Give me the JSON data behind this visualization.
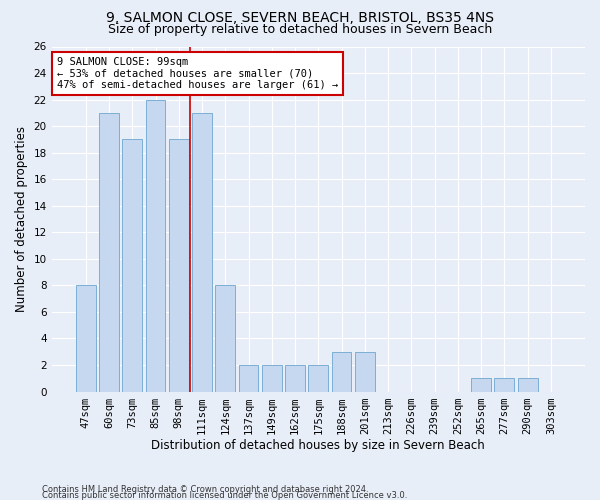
{
  "title_line1": "9, SALMON CLOSE, SEVERN BEACH, BRISTOL, BS35 4NS",
  "title_line2": "Size of property relative to detached houses in Severn Beach",
  "xlabel": "Distribution of detached houses by size in Severn Beach",
  "ylabel": "Number of detached properties",
  "footnote1": "Contains HM Land Registry data © Crown copyright and database right 2024.",
  "footnote2": "Contains public sector information licensed under the Open Government Licence v3.0.",
  "categories": [
    "47sqm",
    "60sqm",
    "73sqm",
    "85sqm",
    "98sqm",
    "111sqm",
    "124sqm",
    "137sqm",
    "149sqm",
    "162sqm",
    "175sqm",
    "188sqm",
    "201sqm",
    "213sqm",
    "226sqm",
    "239sqm",
    "252sqm",
    "265sqm",
    "277sqm",
    "290sqm",
    "303sqm"
  ],
  "values": [
    8,
    21,
    19,
    22,
    19,
    21,
    8,
    2,
    2,
    2,
    2,
    3,
    3,
    0,
    0,
    0,
    0,
    1,
    1,
    1,
    0
  ],
  "bar_color": "#c5d8f0",
  "bar_edge_color": "#7bafd4",
  "vline_x_index": 4.5,
  "vline_color": "#cc0000",
  "annotation_text": "9 SALMON CLOSE: 99sqm\n← 53% of detached houses are smaller (70)\n47% of semi-detached houses are larger (61) →",
  "annotation_box_color": "white",
  "annotation_box_edge": "#cc0000",
  "ylim": [
    0,
    26
  ],
  "yticks": [
    0,
    2,
    4,
    6,
    8,
    10,
    12,
    14,
    16,
    18,
    20,
    22,
    24,
    26
  ],
  "bg_color": "#e8eef8",
  "grid_color": "white",
  "title_fontsize": 10,
  "subtitle_fontsize": 9,
  "axis_label_fontsize": 8.5,
  "tick_fontsize": 7.5,
  "annot_fontsize": 7.5,
  "footnote_fontsize": 6.0
}
